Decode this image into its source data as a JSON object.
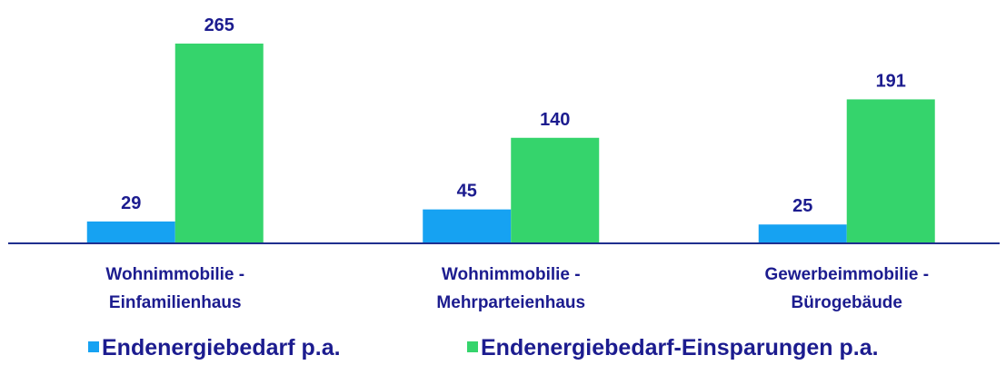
{
  "chart_data": {
    "type": "bar",
    "categories": [
      "Wohnimmobilie -\nEinfamilienhaus",
      "Wohnimmobilie -\nMehrparteienhaus",
      "Gewerbeimmobilie -\nBürogebäude"
    ],
    "series": [
      {
        "name": "Endenergiebedarf p.a.",
        "color": "#16a2f2",
        "values": [
          29,
          45,
          25
        ]
      },
      {
        "name": "Endenergiebedarf-Einsparungen p.a.",
        "color": "#35d46c",
        "values": [
          265,
          140,
          191
        ]
      }
    ]
  }
}
